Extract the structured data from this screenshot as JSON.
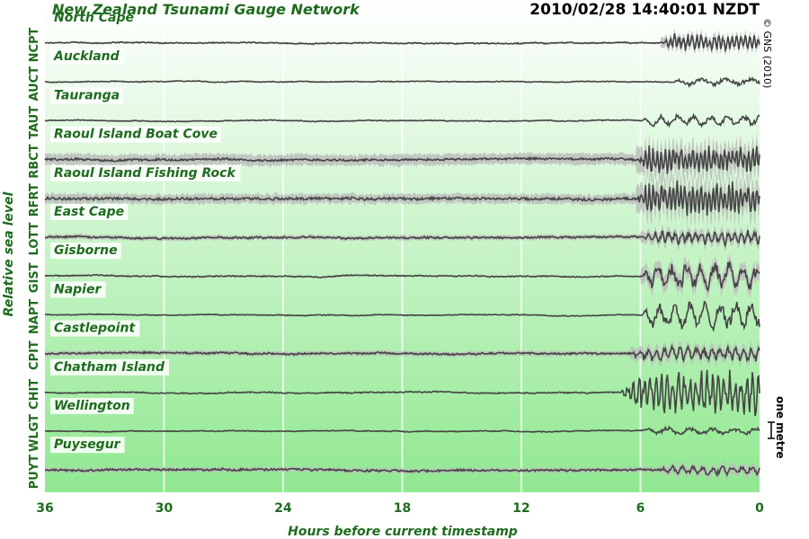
{
  "header": {
    "title": "New Zealand Tsunami Gauge Network",
    "timestamp": "2010/02/28 14:40:01 NZDT",
    "copyright": "© GNS (2010)"
  },
  "colors": {
    "gradient_top": "#ffffff",
    "gradient_bottom": "#90e890",
    "trace": "#444444",
    "envelope": "#bdbdbd",
    "label_green": "#1e6b1e"
  },
  "scale_bar": {
    "label": "one metre"
  },
  "chart_data": {
    "type": "line",
    "title": "New Zealand Tsunami Gauge Network",
    "xlabel": "Hours before current timestamp",
    "ylabel": "Relative sea level",
    "x_ticks": [
      36,
      30,
      24,
      18,
      12,
      6,
      0
    ],
    "xlim": [
      36,
      0
    ],
    "grid": "vertical lines at each x tick",
    "series": [
      {
        "name": "North Cape",
        "code": "NCPT",
        "noise": 0.03,
        "envelope": 0.05,
        "activity_start": 5,
        "activity_amp": 0.55,
        "activity_freq": 4.5
      },
      {
        "name": "Auckland",
        "code": "AUCT",
        "noise": 0.02,
        "envelope": 0,
        "activity_start": 4.5,
        "activity_amp": 0.25,
        "activity_freq": 0.8
      },
      {
        "name": "Tauranga",
        "code": "TAUT",
        "noise": 0.02,
        "envelope": 0,
        "activity_start": 6,
        "activity_amp": 0.35,
        "activity_freq": 1.2
      },
      {
        "name": "Raoul Island Boat Cove",
        "code": "RBCT",
        "noise": 0.06,
        "envelope": 0.35,
        "activity_start": 6.2,
        "activity_amp": 0.9,
        "activity_freq": 5
      },
      {
        "name": "Raoul Island Fishing Rock",
        "code": "RFRT",
        "noise": 0.08,
        "envelope": 0.3,
        "activity_start": 6.2,
        "activity_amp": 1.1,
        "activity_freq": 5
      },
      {
        "name": "East Cape",
        "code": "LOTT",
        "noise": 0.05,
        "envelope": 0.15,
        "activity_start": 6,
        "activity_amp": 0.45,
        "activity_freq": 3
      },
      {
        "name": "Gisborne",
        "code": "GIST",
        "noise": 0.03,
        "envelope": 0.05,
        "activity_start": 6,
        "activity_amp": 0.95,
        "activity_freq": 1.4
      },
      {
        "name": "Napier",
        "code": "NAPT",
        "noise": 0.02,
        "envelope": 0,
        "activity_start": 6,
        "activity_amp": 0.9,
        "activity_freq": 1.3
      },
      {
        "name": "Castlepoint",
        "code": "CPIT",
        "noise": 0.05,
        "envelope": 0.15,
        "activity_start": 6.5,
        "activity_amp": 0.5,
        "activity_freq": 2.5
      },
      {
        "name": "Chatham Island",
        "code": "CHIT",
        "noise": 0.03,
        "envelope": 0,
        "activity_start": 7,
        "activity_amp": 1.5,
        "activity_freq": 3.5
      },
      {
        "name": "Wellington",
        "code": "WLGT",
        "noise": 0.02,
        "envelope": 0,
        "activity_start": 6,
        "activity_amp": 0.25,
        "activity_freq": 0.9
      },
      {
        "name": "Puysegur",
        "code": "PUYT",
        "noise": 0.06,
        "envelope": 0.15,
        "activity_start": 5,
        "activity_amp": 0.3,
        "activity_freq": 2
      }
    ]
  }
}
